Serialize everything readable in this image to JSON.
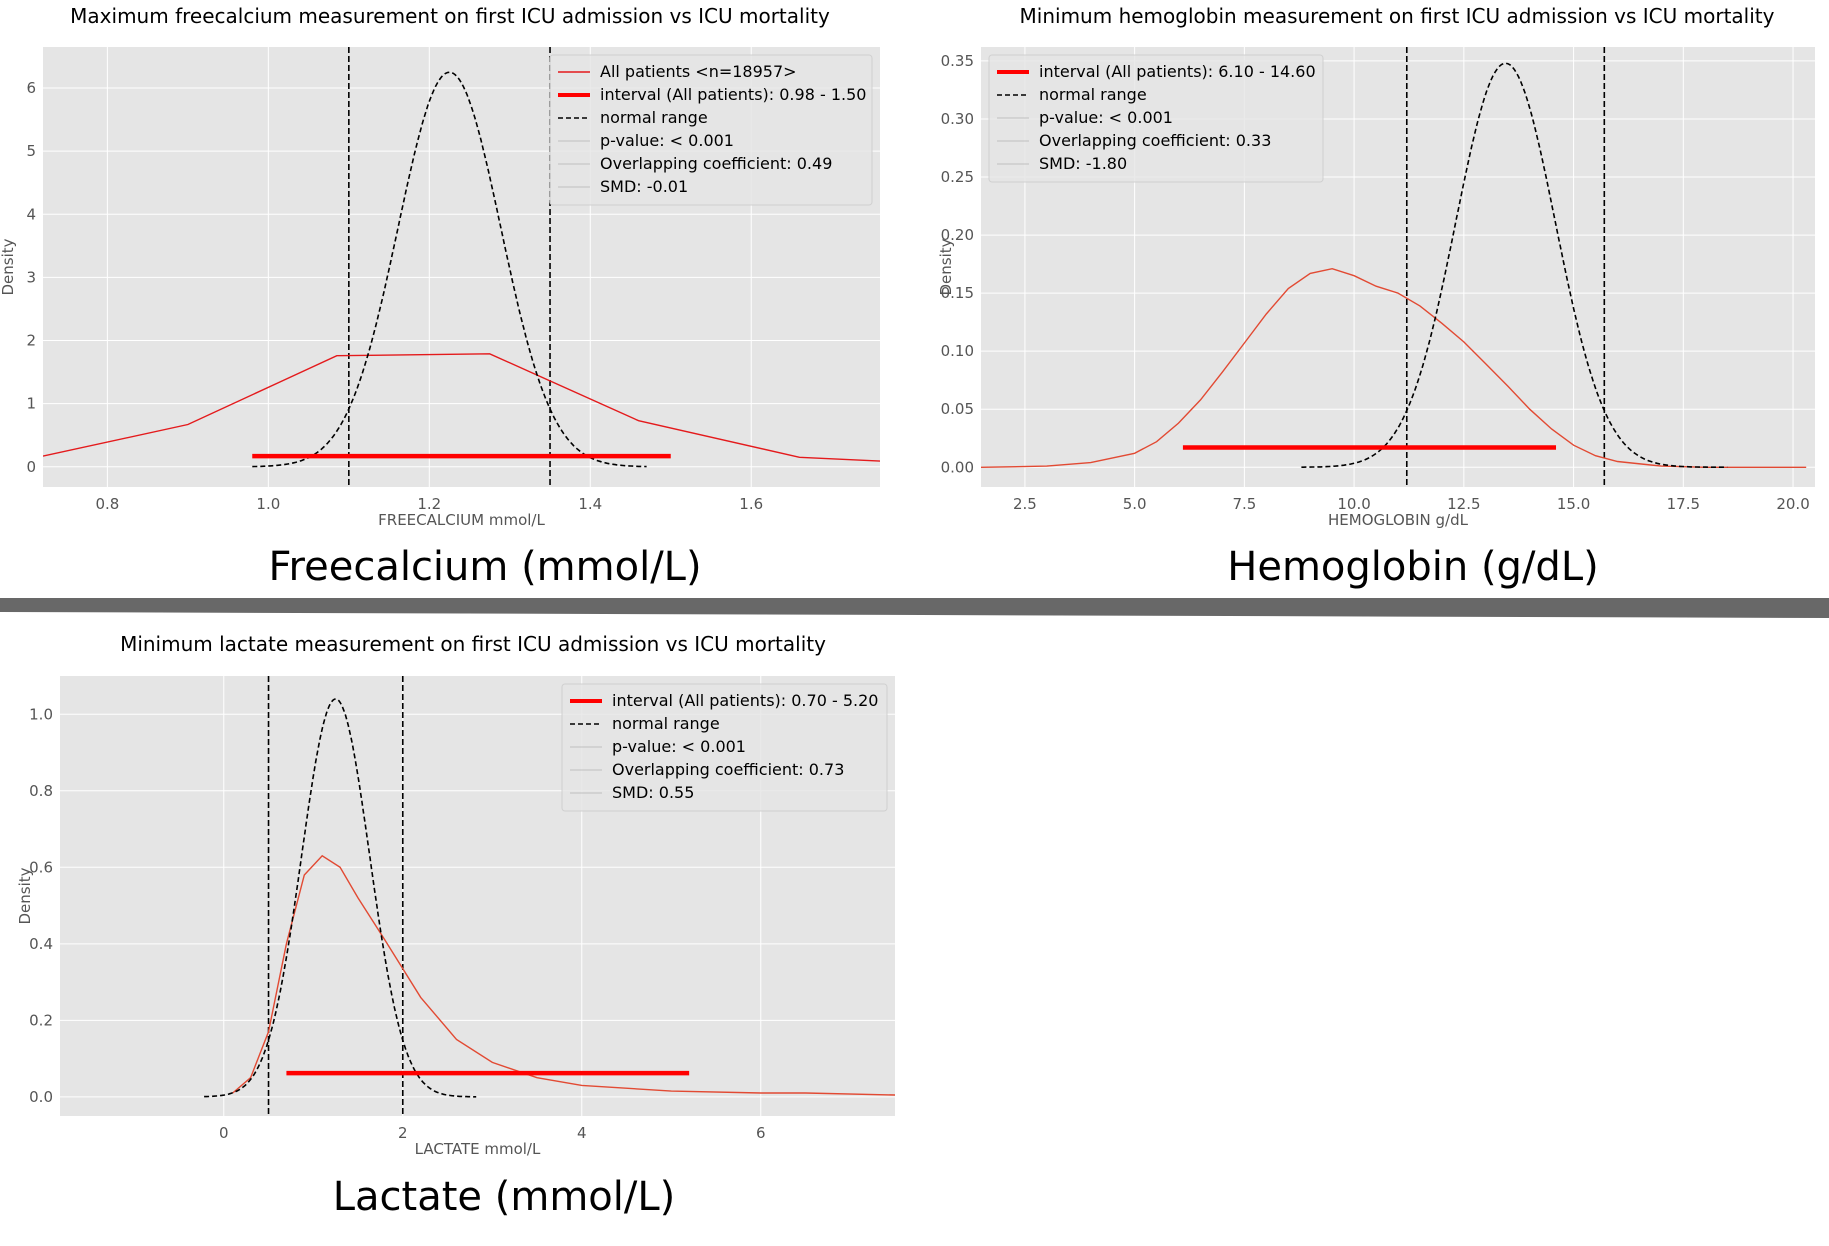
{
  "chart_data": [
    {
      "type": "line",
      "title": "Maximum freecalcium measurement on first ICU admission vs ICU mortality",
      "caption": "Freecalcium (mmol/L)",
      "xlabel": "FREECALCIUM mmol/L",
      "ylabel": "Density",
      "xlim": [
        0.72,
        1.76
      ],
      "ylim": [
        -0.32,
        6.65
      ],
      "xticks": [
        0.8,
        1.0,
        1.2,
        1.4,
        1.6
      ],
      "xtick_labels": [
        "0.8",
        "1.0",
        "1.2",
        "1.4",
        "1.6"
      ],
      "yticks": [
        0,
        1,
        2,
        3,
        4,
        5,
        6
      ],
      "ytick_labels": [
        "0",
        "1",
        "2",
        "3",
        "4",
        "5",
        "6"
      ],
      "grid": true,
      "legend_position": "top-right",
      "legend": [
        {
          "label": "All patients <n=18957>",
          "style": "red-line"
        },
        {
          "label": "interval (All patients): 0.98 - 1.50",
          "style": "red-thick"
        },
        {
          "label": "normal range",
          "style": "black-dashed"
        },
        {
          "label": "p-value: < 0.001",
          "style": "grey-line"
        },
        {
          "label": "Overlapping coefficient: 0.49",
          "style": "grey-line"
        },
        {
          "label": "SMD: -0.01",
          "style": "grey-line"
        }
      ],
      "series": [
        {
          "name": "All patients <n=18957>",
          "color": "#e41a1c",
          "x": [
            0.72,
            0.9,
            1.085,
            1.275,
            1.46,
            1.66,
            1.76
          ],
          "y": [
            0.17,
            0.67,
            1.76,
            1.79,
            0.73,
            0.15,
            0.09
          ]
        },
        {
          "name": "normal range",
          "color": "#000000",
          "dashed": true,
          "gaussian": {
            "mean": 1.225,
            "sd": 0.0638,
            "amp": 6.25,
            "xmin": 0.98,
            "xmax": 1.47
          }
        }
      ],
      "interval": {
        "from": 0.98,
        "to": 1.5,
        "y": 0.17,
        "color": "#ff0000"
      },
      "vlines": [
        1.1,
        1.35
      ]
    },
    {
      "type": "line",
      "title": "Minimum hemoglobin measurement on first ICU admission vs ICU mortality",
      "caption": "Hemoglobin (g/dL)",
      "xlabel": "HEMOGLOBIN g/dL",
      "ylabel": "Density",
      "xlim": [
        1.5,
        20.5
      ],
      "ylim": [
        -0.017,
        0.362
      ],
      "xticks": [
        2.5,
        5.0,
        7.5,
        10.0,
        12.5,
        15.0,
        17.5,
        20.0
      ],
      "xtick_labels": [
        "2.5",
        "5.0",
        "7.5",
        "10.0",
        "12.5",
        "15.0",
        "17.5",
        "20.0"
      ],
      "yticks": [
        0,
        0.05,
        0.1,
        0.15,
        0.2,
        0.25,
        0.3,
        0.35
      ],
      "ytick_labels": [
        "0.00",
        "0.05",
        "0.10",
        "0.15",
        "0.20",
        "0.25",
        "0.30",
        "0.35"
      ],
      "grid": true,
      "legend_position": "top-left",
      "legend": [
        {
          "label": "interval (All patients): 6.10 - 14.60",
          "style": "red-thick"
        },
        {
          "label": "normal range",
          "style": "black-dashed"
        },
        {
          "label": "p-value: < 0.001",
          "style": "grey-line"
        },
        {
          "label": "Overlapping coefficient: 0.33",
          "style": "grey-line"
        },
        {
          "label": "SMD: -1.80",
          "style": "grey-line"
        }
      ],
      "series": [
        {
          "name": "density",
          "color": "#e24a33",
          "x": [
            1.5,
            3.0,
            4.0,
            5.0,
            5.5,
            6.0,
            6.5,
            7.0,
            7.5,
            8.0,
            8.5,
            9.0,
            9.5,
            10.0,
            10.5,
            11.0,
            11.5,
            12.0,
            12.5,
            13.0,
            13.5,
            14.0,
            14.5,
            15.0,
            15.5,
            16.0,
            17.0,
            18.0,
            20.3
          ],
          "y": [
            0.0,
            0.001,
            0.004,
            0.012,
            0.022,
            0.038,
            0.058,
            0.082,
            0.107,
            0.132,
            0.154,
            0.167,
            0.171,
            0.165,
            0.156,
            0.15,
            0.139,
            0.124,
            0.108,
            0.089,
            0.07,
            0.05,
            0.033,
            0.019,
            0.01,
            0.005,
            0.001,
            0.0,
            0.0
          ]
        },
        {
          "name": "normal range",
          "color": "#000000",
          "dashed": true,
          "gaussian": {
            "mean": 13.45,
            "sd": 1.135,
            "amp": 0.348,
            "xmin": 8.8,
            "xmax": 18.5
          }
        }
      ],
      "interval": {
        "from": 6.1,
        "to": 14.6,
        "y": 0.017,
        "color": "#ff0000"
      },
      "vlines": [
        11.2,
        15.7
      ]
    },
    {
      "type": "line",
      "title": "Minimum lactate measurement on first ICU admission vs ICU mortality",
      "caption": "Lactate (mmol/L)",
      "xlabel": "LACTATE mmol/L",
      "ylabel": "Density",
      "xlim": [
        -1.83,
        7.5
      ],
      "ylim": [
        -0.05,
        1.1
      ],
      "xticks": [
        0,
        2,
        4,
        6
      ],
      "xtick_labels": [
        "0",
        "2",
        "4",
        "6"
      ],
      "yticks": [
        0,
        0.2,
        0.4,
        0.6,
        0.8,
        1.0
      ],
      "ytick_labels": [
        "0.0",
        "0.2",
        "0.4",
        "0.6",
        "0.8",
        "1.0"
      ],
      "grid": true,
      "legend_position": "top-right",
      "legend": [
        {
          "label": "interval (All patients): 0.70 - 5.20",
          "style": "red-thick"
        },
        {
          "label": "normal range",
          "style": "black-dashed"
        },
        {
          "label": "p-value: < 0.001",
          "style": "grey-line"
        },
        {
          "label": "Overlapping coefficient: 0.73",
          "style": "grey-line"
        },
        {
          "label": "SMD: 0.55",
          "style": "grey-line"
        }
      ],
      "series": [
        {
          "name": "density",
          "color": "#e24a33",
          "x": [
            0.1,
            0.3,
            0.5,
            0.7,
            0.9,
            1.1,
            1.3,
            1.5,
            1.8,
            2.2,
            2.6,
            3.0,
            3.5,
            4.0,
            5.0,
            6.0,
            6.5,
            7.5
          ],
          "y": [
            0.01,
            0.05,
            0.17,
            0.4,
            0.58,
            0.63,
            0.6,
            0.52,
            0.41,
            0.26,
            0.15,
            0.09,
            0.05,
            0.03,
            0.015,
            0.01,
            0.01,
            0.005
          ]
        },
        {
          "name": "normal range",
          "color": "#000000",
          "dashed": true,
          "gaussian": {
            "mean": 1.25,
            "sd": 0.38,
            "amp": 1.04,
            "xmin": -0.22,
            "xmax": 2.82
          }
        }
      ],
      "interval": {
        "from": 0.7,
        "to": 5.2,
        "y": 0.062,
        "color": "#ff0000"
      },
      "vlines": [
        0.5,
        2.0
      ]
    }
  ]
}
